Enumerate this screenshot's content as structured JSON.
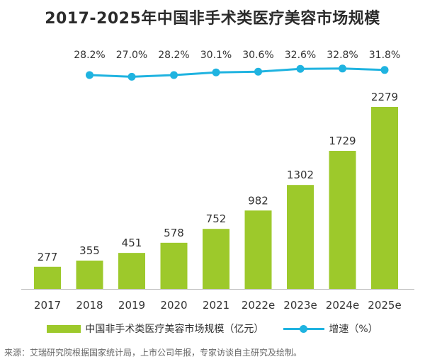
{
  "title": "2017-2025年中国非手术类医疗美容市场规模",
  "colors": {
    "bar": "#9dc92b",
    "line": "#1fb3e0"
  },
  "legend": {
    "bar_label": "中国非手术类医疗美容市场规模（亿元）",
    "line_label": "增速（%）"
  },
  "source": "来源：艾瑞研究院根据国家统计局，上市公司年报，专家访谈自主研究及绘制。",
  "chart_data": {
    "type": "bar",
    "title": "2017-2025年中国非手术类医疗美容市场规模",
    "categories": [
      "2017",
      "2018",
      "2019",
      "2020",
      "2021",
      "2022e",
      "2023e",
      "2024e",
      "2025e"
    ],
    "series": [
      {
        "name": "中国非手术类医疗美容市场规模（亿元）",
        "type": "bar",
        "values": [
          277,
          355,
          451,
          578,
          752,
          982,
          1302,
          1729,
          2279
        ]
      },
      {
        "name": "增速（%）",
        "type": "line",
        "values": [
          null,
          28.2,
          27.0,
          28.2,
          30.1,
          30.6,
          32.6,
          32.8,
          31.8
        ],
        "labels": [
          "",
          "28.2%",
          "27.0%",
          "28.2%",
          "30.1%",
          "30.6%",
          "32.6%",
          "32.8%",
          "31.8%"
        ]
      }
    ],
    "xlabel": "",
    "ylabel": "",
    "legend_position": "bottom",
    "grid": false
  }
}
